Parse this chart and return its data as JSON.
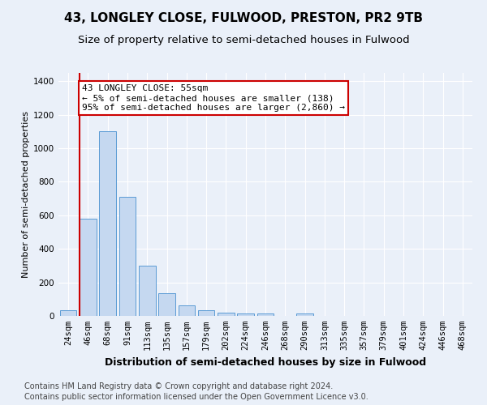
{
  "title": "43, LONGLEY CLOSE, FULWOOD, PRESTON, PR2 9TB",
  "subtitle": "Size of property relative to semi-detached houses in Fulwood",
  "xlabel": "Distribution of semi-detached houses by size in Fulwood",
  "ylabel": "Number of semi-detached properties",
  "footer1": "Contains HM Land Registry data © Crown copyright and database right 2024.",
  "footer2": "Contains public sector information licensed under the Open Government Licence v3.0.",
  "bins": [
    "24sqm",
    "46sqm",
    "68sqm",
    "91sqm",
    "113sqm",
    "135sqm",
    "157sqm",
    "179sqm",
    "202sqm",
    "224sqm",
    "246sqm",
    "268sqm",
    "290sqm",
    "313sqm",
    "335sqm",
    "357sqm",
    "379sqm",
    "401sqm",
    "424sqm",
    "446sqm",
    "468sqm"
  ],
  "values": [
    35,
    580,
    1100,
    710,
    300,
    135,
    65,
    35,
    20,
    15,
    15,
    0,
    15,
    0,
    0,
    0,
    0,
    0,
    0,
    0,
    0
  ],
  "bar_color": "#c5d8f0",
  "bar_edge_color": "#5b9bd5",
  "vline_color": "#cc0000",
  "vline_x_index": 1,
  "annotation_text": "43 LONGLEY CLOSE: 55sqm\n← 5% of semi-detached houses are smaller (138)\n95% of semi-detached houses are larger (2,860) →",
  "annotation_box_facecolor": "#ffffff",
  "annotation_box_edgecolor": "#cc0000",
  "ylim": [
    0,
    1450
  ],
  "yticks": [
    0,
    200,
    400,
    600,
    800,
    1000,
    1200,
    1400
  ],
  "bg_color": "#eaf0f9",
  "plot_bg_color": "#eaf0f9",
  "grid_color": "#ffffff",
  "title_fontsize": 11,
  "subtitle_fontsize": 9.5,
  "tick_fontsize": 7.5,
  "ylabel_fontsize": 8,
  "xlabel_fontsize": 9,
  "annotation_fontsize": 8,
  "footer_fontsize": 7
}
